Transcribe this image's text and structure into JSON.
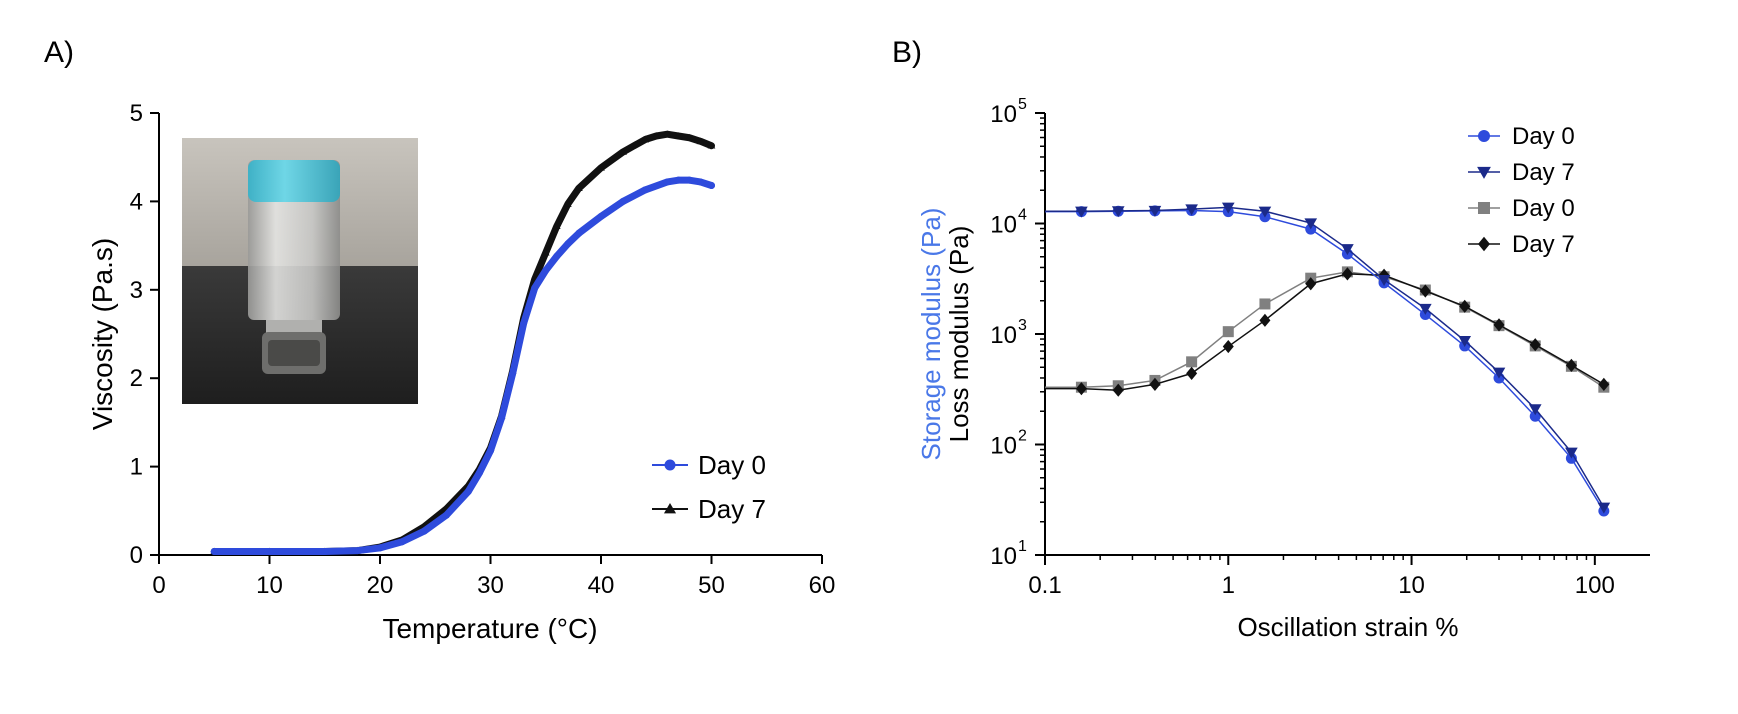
{
  "panels": {
    "a": {
      "label": "A)"
    },
    "b": {
      "label": "B)"
    }
  },
  "colors": {
    "day0_blue": "#2e4bdc",
    "day7_navy": "#1b2a8a",
    "loss_day0_gray": "#808080",
    "loss_day7_black": "#111111",
    "storage_label_blue": "#4a78e8",
    "vial_cap_cyan": "#5cc8da",
    "photo_background_upper": "#b8b4ad",
    "photo_background_lower": "#2a2a2a"
  },
  "chart_data": [
    {
      "id": "A",
      "type": "scatter",
      "xlabel": "Temperature (°C)",
      "ylabel": "Viscosity (Pa.s)",
      "xlim": [
        0,
        60
      ],
      "ylim": [
        0,
        5
      ],
      "xticks": [
        0,
        10,
        20,
        30,
        40,
        50,
        60
      ],
      "yticks": [
        0,
        1,
        2,
        3,
        4,
        5
      ],
      "grid": false,
      "legend_position": "bottom-right",
      "inset": "photo of vial with blue cap",
      "series": [
        {
          "name": "Day 0",
          "marker": "circle",
          "color": "#2e4bdc",
          "x": [
            5,
            10,
            15,
            18,
            20,
            22,
            24,
            26,
            28,
            29,
            30,
            31,
            32,
            33,
            34,
            35,
            36,
            37,
            38,
            40,
            42,
            44,
            46,
            47,
            48,
            49,
            50
          ],
          "y": [
            0.04,
            0.04,
            0.04,
            0.05,
            0.08,
            0.15,
            0.27,
            0.45,
            0.72,
            0.93,
            1.18,
            1.55,
            2.05,
            2.62,
            3.02,
            3.22,
            3.38,
            3.52,
            3.64,
            3.83,
            4.0,
            4.13,
            4.22,
            4.24,
            4.24,
            4.22,
            4.18
          ]
        },
        {
          "name": "Day 7",
          "marker": "triangle",
          "color": "#111111",
          "x": [
            5,
            10,
            15,
            18,
            20,
            22,
            24,
            26,
            28,
            29,
            30,
            31,
            32,
            33,
            34,
            35,
            36,
            37,
            38,
            40,
            42,
            44,
            45,
            46,
            47,
            48,
            49,
            50
          ],
          "y": [
            0.04,
            0.04,
            0.04,
            0.05,
            0.09,
            0.17,
            0.32,
            0.52,
            0.78,
            0.97,
            1.21,
            1.57,
            2.08,
            2.68,
            3.12,
            3.42,
            3.72,
            3.97,
            4.15,
            4.38,
            4.56,
            4.7,
            4.74,
            4.76,
            4.74,
            4.72,
            4.68,
            4.63
          ]
        }
      ]
    },
    {
      "id": "B",
      "type": "line",
      "xlabel": "Oscillation strain %",
      "ylabel_storage": "Storage modulus (Pa)",
      "ylabel_loss": "Loss modulus (Pa)",
      "xscale": "log",
      "yscale": "log",
      "xlim": [
        0.1,
        200
      ],
      "ylim": [
        10,
        100000
      ],
      "xticks": [
        0.1,
        1,
        10,
        100
      ],
      "xtick_labels": [
        "0.1",
        "1",
        "10",
        "100"
      ],
      "yticks": [
        10,
        100,
        1000,
        10000,
        100000
      ],
      "ytick_base": "10",
      "ytick_exponents": [
        "1",
        "2",
        "3",
        "4",
        "5"
      ],
      "grid": false,
      "legend_position": "top-right",
      "x": [
        0.158,
        0.251,
        0.398,
        0.631,
        1.0,
        1.585,
        2.818,
        4.467,
        7.079,
        11.89,
        19.5,
        30.0,
        47.3,
        74.5,
        112
      ],
      "series": [
        {
          "name": "Day 0",
          "modulus": "storage",
          "marker": "circle",
          "color": "#2e4bdc",
          "values": [
            12800,
            12900,
            13000,
            13100,
            12800,
            11500,
            8900,
            5300,
            2900,
            1500,
            780,
            400,
            180,
            75,
            25
          ]
        },
        {
          "name": "Day 7",
          "modulus": "storage",
          "marker": "triangle-down",
          "color": "#1b2a8a",
          "values": [
            12900,
            13000,
            13100,
            13500,
            14000,
            12900,
            10100,
            5900,
            3100,
            1700,
            870,
            450,
            210,
            85,
            27
          ]
        },
        {
          "name": "Day 0",
          "modulus": "loss",
          "marker": "square",
          "color": "#808080",
          "values": [
            330,
            340,
            380,
            560,
            1050,
            1870,
            3200,
            3650,
            3300,
            2500,
            1750,
            1190,
            780,
            510,
            330
          ]
        },
        {
          "name": "Day 7",
          "modulus": "loss",
          "marker": "diamond",
          "color": "#111111",
          "values": [
            320,
            310,
            350,
            440,
            770,
            1330,
            2850,
            3500,
            3400,
            2450,
            1780,
            1210,
            800,
            520,
            350
          ]
        }
      ]
    }
  ]
}
